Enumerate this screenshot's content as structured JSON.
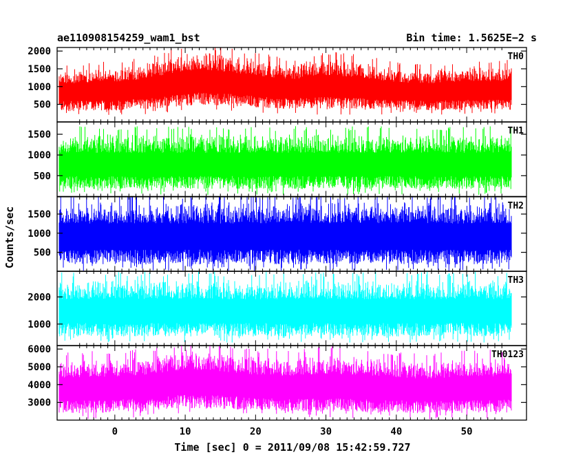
{
  "header": {
    "title": "ae110908154259_wam1_bst",
    "bin_time": "Bin time: 1.5625E−2 s"
  },
  "chart_data": [
    {
      "type": "line",
      "name": "TH0",
      "color": "#ff0000",
      "xlim": [
        -8.2,
        58.5
      ],
      "ylim": [
        0,
        2100
      ],
      "yticks": [
        500,
        1000,
        1500,
        2000
      ],
      "ytick_labels": [
        "500",
        "1000",
        "1500",
        "2000"
      ],
      "x_range": [
        -8,
        56.4
      ],
      "envelope": {
        "x": [
          -8,
          0,
          4,
          8,
          12,
          16,
          20,
          25,
          30,
          35,
          40,
          45,
          50,
          56
        ],
        "low": [
          280,
          300,
          330,
          380,
          460,
          420,
          380,
          340,
          330,
          320,
          310,
          300,
          300,
          300
        ],
        "high": [
          1550,
          1620,
          1700,
          1950,
          2050,
          2000,
          1850,
          1700,
          1900,
          1800,
          1600,
          1550,
          1650,
          1650
        ]
      }
    },
    {
      "type": "line",
      "name": "TH1",
      "color": "#00ff00",
      "xlim": [
        -8.2,
        58.5
      ],
      "ylim": [
        0,
        1800
      ],
      "yticks": [
        500,
        1000,
        1500
      ],
      "ytick_labels": [
        "500",
        "1000",
        "1500"
      ],
      "x_range": [
        -8,
        56.4
      ],
      "envelope": {
        "x": [
          -8,
          56
        ],
        "low": [
          150,
          150
        ],
        "high": [
          1580,
          1580
        ]
      }
    },
    {
      "type": "line",
      "name": "TH2",
      "color": "#0000ff",
      "xlim": [
        -8.2,
        58.5
      ],
      "ylim": [
        0,
        1950
      ],
      "yticks": [
        500,
        1000,
        1500
      ],
      "ytick_labels": [
        "500",
        "1000",
        "1500"
      ],
      "x_range": [
        -8,
        56.4
      ],
      "envelope": {
        "x": [
          -8,
          56
        ],
        "low": [
          150,
          150
        ],
        "high": [
          1900,
          1900
        ]
      }
    },
    {
      "type": "line",
      "name": "TH3",
      "color": "#00ffff",
      "xlim": [
        -8.2,
        58.5
      ],
      "ylim": [
        200,
        2950
      ],
      "yticks": [
        1000,
        2000
      ],
      "ytick_labels": [
        "1000",
        "2000"
      ],
      "x_range": [
        -8,
        56.4
      ],
      "envelope": {
        "x": [
          -8,
          56
        ],
        "low": [
          500,
          500
        ],
        "high": [
          2750,
          2750
        ]
      }
    },
    {
      "type": "line",
      "name": "TH0123",
      "color": "#ff00ff",
      "xlim": [
        -8.2,
        58.5
      ],
      "ylim": [
        2000,
        6200
      ],
      "yticks": [
        3000,
        4000,
        5000,
        6000
      ],
      "ytick_labels": [
        "3000",
        "4000",
        "5000",
        "6000"
      ],
      "x_range": [
        -8,
        56.4
      ],
      "envelope": {
        "x": [
          -8,
          0,
          5,
          10,
          15,
          20,
          25,
          30,
          35,
          40,
          45,
          50,
          56
        ],
        "low": [
          2300,
          2350,
          2450,
          2600,
          2550,
          2450,
          2400,
          2400,
          2350,
          2350,
          2300,
          2350,
          2350
        ],
        "high": [
          5600,
          5700,
          5800,
          6200,
          6000,
          5800,
          5700,
          5900,
          5800,
          5600,
          5500,
          5700,
          5700
        ]
      }
    }
  ],
  "x_axis": {
    "ticks": [
      0,
      10,
      20,
      30,
      40,
      50
    ],
    "tick_labels": [
      "0",
      "10",
      "20",
      "30",
      "40",
      "50"
    ],
    "label": "Time [sec] 0 = 2011/09/08 15:42:59.727"
  },
  "y_axis": {
    "label": "Counts/sec"
  }
}
